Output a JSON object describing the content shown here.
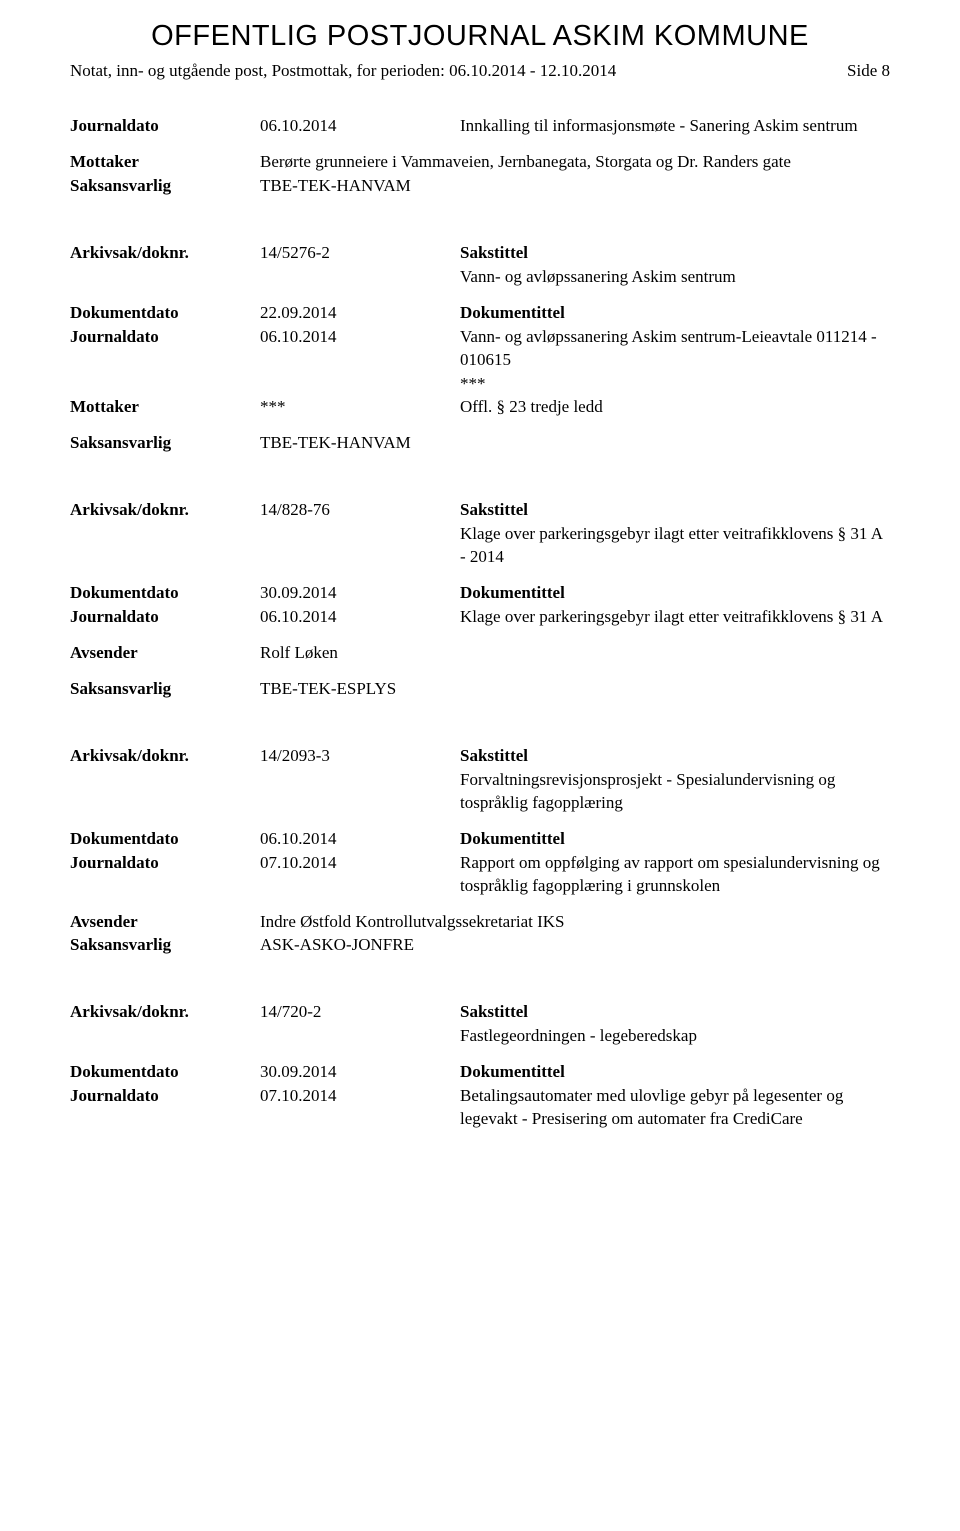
{
  "header": {
    "title": "OFFENTLIG POSTJOURNAL ASKIM KOMMUNE",
    "subtitle": "Notat, inn- og utgående post, Postmottak, for perioden: 06.10.2014 - 12.10.2014",
    "page": "Side 8"
  },
  "records": [
    {
      "rows": [
        {
          "type": "two",
          "label": "Journaldato",
          "v1": "06.10.2014",
          "v2": "Innkalling til informasjonsmøte - Sanering Askim sentrum",
          "bold": true
        },
        {
          "type": "spacer-sm"
        },
        {
          "type": "one",
          "label": "Mottaker",
          "v2": "Berørte grunneiere i Vammaveien, Jernbanegata, Storgata og Dr. Randers gate",
          "bold": true
        },
        {
          "type": "one",
          "label": "Saksansvarlig",
          "v2": "TBE-TEK-HANVAM",
          "bold": true
        }
      ]
    },
    {
      "rows": [
        {
          "type": "two",
          "label": "Arkivsak/doknr.",
          "v1": "14/5276-2",
          "v2": "Sakstittel",
          "bold": true,
          "v2bold": true
        },
        {
          "type": "two",
          "label": "",
          "v1": "",
          "v2": "Vann- og avløpssanering Askim sentrum"
        },
        {
          "type": "spacer-sm"
        },
        {
          "type": "two",
          "label": "Dokumentdato",
          "v1": "22.09.2014",
          "v2": "Dokumentittel",
          "bold": true,
          "v2bold": true
        },
        {
          "type": "two",
          "label": "Journaldato",
          "v1": "06.10.2014",
          "v2": "Vann- og avløpssanering Askim sentrum-Leieavtale 011214 - 010615",
          "bold": true
        },
        {
          "type": "two",
          "label": "",
          "v1": "",
          "v2": "***"
        },
        {
          "type": "two",
          "label": "Mottaker",
          "v1": "***",
          "v2": "Offl. § 23 tredje ledd",
          "bold": true
        },
        {
          "type": "spacer-sm"
        },
        {
          "type": "one",
          "label": "Saksansvarlig",
          "v2": "TBE-TEK-HANVAM",
          "bold": true
        }
      ]
    },
    {
      "rows": [
        {
          "type": "two",
          "label": "Arkivsak/doknr.",
          "v1": "14/828-76",
          "v2": "Sakstittel",
          "bold": true,
          "v2bold": true
        },
        {
          "type": "two",
          "label": "",
          "v1": "",
          "v2": "Klage over parkeringsgebyr ilagt etter veitrafikklovens § 31 A - 2014"
        },
        {
          "type": "spacer-sm"
        },
        {
          "type": "two",
          "label": "Dokumentdato",
          "v1": "30.09.2014",
          "v2": "Dokumentittel",
          "bold": true,
          "v2bold": true
        },
        {
          "type": "two",
          "label": "Journaldato",
          "v1": "06.10.2014",
          "v2": "Klage over parkeringsgebyr ilagt etter veitrafikklovens § 31 A",
          "bold": true
        },
        {
          "type": "spacer-sm"
        },
        {
          "type": "one",
          "label": "Avsender",
          "v2": "Rolf Løken",
          "bold": true
        },
        {
          "type": "spacer-sm"
        },
        {
          "type": "one",
          "label": "Saksansvarlig",
          "v2": "TBE-TEK-ESPLYS",
          "bold": true
        }
      ]
    },
    {
      "rows": [
        {
          "type": "two",
          "label": "Arkivsak/doknr.",
          "v1": "14/2093-3",
          "v2": "Sakstittel",
          "bold": true,
          "v2bold": true
        },
        {
          "type": "two",
          "label": "",
          "v1": "",
          "v2": "Forvaltningsrevisjonsprosjekt - Spesialundervisning og tospråklig fagopplæring"
        },
        {
          "type": "spacer-sm"
        },
        {
          "type": "two",
          "label": "Dokumentdato",
          "v1": "06.10.2014",
          "v2": "Dokumentittel",
          "bold": true,
          "v2bold": true
        },
        {
          "type": "two",
          "label": "Journaldato",
          "v1": "07.10.2014",
          "v2": "Rapport om oppfølging av rapport om spesialundervisning og tospråklig fagopplæring i grunnskolen",
          "bold": true
        },
        {
          "type": "spacer-sm"
        },
        {
          "type": "one",
          "label": "Avsender",
          "v2": "Indre Østfold Kontrollutvalgssekretariat IKS",
          "bold": true
        },
        {
          "type": "one",
          "label": "Saksansvarlig",
          "v2": "ASK-ASKO-JONFRE",
          "bold": true
        }
      ]
    },
    {
      "rows": [
        {
          "type": "two",
          "label": "Arkivsak/doknr.",
          "v1": "14/720-2",
          "v2": "Sakstittel",
          "bold": true,
          "v2bold": true
        },
        {
          "type": "two",
          "label": "",
          "v1": "",
          "v2": "Fastlegeordningen - legeberedskap"
        },
        {
          "type": "spacer-sm"
        },
        {
          "type": "two",
          "label": "Dokumentdato",
          "v1": "30.09.2014",
          "v2": "Dokumentittel",
          "bold": true,
          "v2bold": true
        },
        {
          "type": "two",
          "label": "Journaldato",
          "v1": "07.10.2014",
          "v2": "Betalingsautomater med ulovlige gebyr på legesenter og legevakt - Presisering om automater fra CrediCare",
          "bold": true
        }
      ]
    }
  ]
}
